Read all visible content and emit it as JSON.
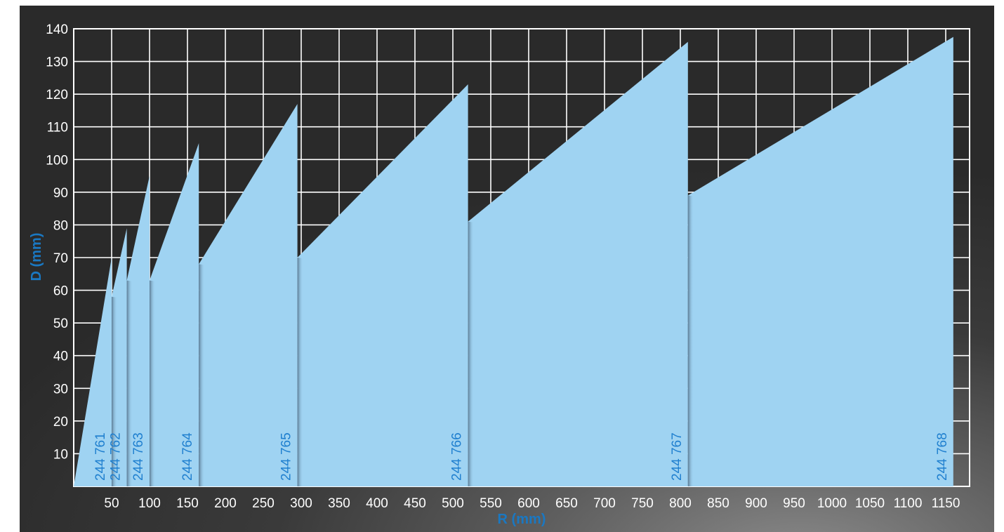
{
  "chart_data": {
    "type": "area",
    "xlabel": "R (mm)",
    "ylabel": "D (mm)",
    "ylim": [
      0,
      140
    ],
    "x_ticks": [
      "50",
      "100",
      "150",
      "200",
      "250",
      "300",
      "350",
      "400",
      "450",
      "500",
      "550",
      "600",
      "650",
      "700",
      "750",
      "800",
      "850",
      "900",
      "950",
      "1000",
      "1050",
      "1100",
      "1150"
    ],
    "y_ticks": [
      "10",
      "20",
      "30",
      "40",
      "50",
      "60",
      "70",
      "80",
      "90",
      "100",
      "110",
      "120",
      "130",
      "140"
    ],
    "grid": true,
    "regions": [
      {
        "name": "244 761",
        "x_start": 0,
        "x_end": 50,
        "y_start": 0,
        "y_end": 70
      },
      {
        "name": "244 762",
        "x_start": 50,
        "x_end": 70,
        "y_start": 58,
        "y_end": 79
      },
      {
        "name": "244 763",
        "x_start": 70,
        "x_end": 100,
        "y_start": 63,
        "y_end": 95
      },
      {
        "name": "244 764",
        "x_start": 100,
        "x_end": 165,
        "y_start": 63,
        "y_end": 105
      },
      {
        "name": "244 765",
        "x_start": 165,
        "x_end": 295,
        "y_start": 68,
        "y_end": 117
      },
      {
        "name": "244 766",
        "x_start": 295,
        "x_end": 520,
        "y_start": 70,
        "y_end": 123
      },
      {
        "name": "244 767",
        "x_start": 520,
        "x_end": 810,
        "y_start": 81,
        "y_end": 136
      },
      {
        "name": "244 768",
        "x_start": 810,
        "x_end": 1160,
        "y_start": 89,
        "y_end": 137.5
      }
    ]
  },
  "colors": {
    "fill": "#9fd3f2",
    "shadow": "#5e7f99",
    "label": "#1f7fcf",
    "axis_title": "#1a78c2",
    "grid": "#ffffff"
  }
}
